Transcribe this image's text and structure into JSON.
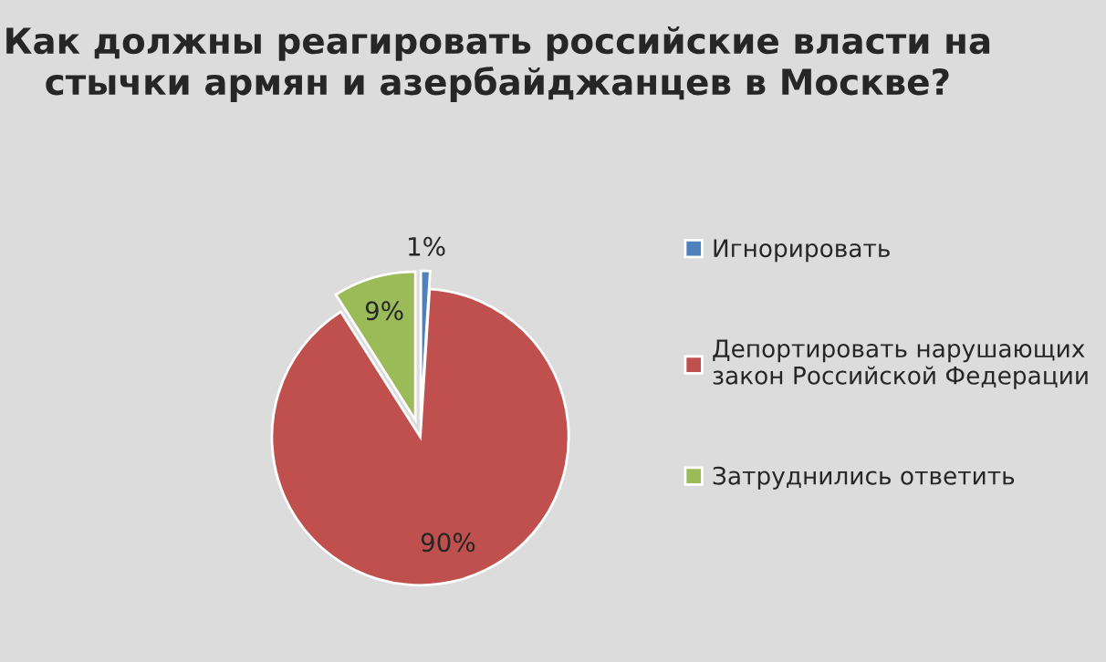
{
  "chart_data": {
    "type": "pie",
    "title": "Как должны реагировать российские власти на стычки армян и азербайджанцев в Москве?",
    "categories": [
      "Игнорировать",
      "Депортировать нарушающих закон Российской Федерации",
      "Затруднились ответить"
    ],
    "values": [
      1,
      90,
      9
    ],
    "colors": [
      "#4f81bd",
      "#c0504d",
      "#9bbb59"
    ],
    "value_labels": [
      "1%",
      "90%",
      "9%"
    ],
    "legend": "right"
  }
}
